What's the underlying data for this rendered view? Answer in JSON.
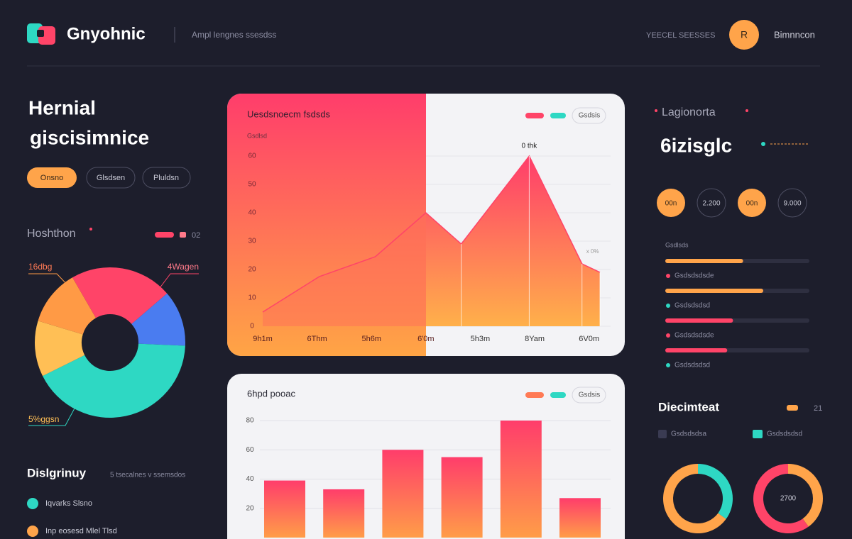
{
  "header": {
    "brand": "Gnyohnic",
    "tagline": "Ampl lengnes ssesdss",
    "status": "YEECEL SEESSES",
    "avatar": "R",
    "user": "Bimnncon"
  },
  "hero": {
    "title_lines": [
      "Hernial",
      "giscisimnice"
    ],
    "filters": [
      "Onsno",
      "Glsdsen",
      "Pluldsn"
    ]
  },
  "chart_data": [
    {
      "type": "area",
      "title": "Uesdsnoecm fsdsds",
      "subtitle": "Gsdlsd",
      "legend_button": "Gsdsis",
      "x": [
        0,
        1.04,
        2.07,
        3,
        3.65,
        4.9,
        5.87,
        6.2
      ],
      "values": [
        5,
        17.5,
        24.5,
        40,
        29,
        60,
        22,
        19
      ],
      "xlim": [
        0,
        6.2
      ],
      "xticks": [
        {
          "value": 0,
          "label": "9h1m"
        },
        {
          "value": 1,
          "label": "6Thm"
        },
        {
          "value": 2,
          "label": "5h6m"
        },
        {
          "value": 3,
          "label": "6'0m"
        },
        {
          "value": 4,
          "label": "5h3m"
        },
        {
          "value": 5,
          "label": "8Yam"
        },
        {
          "value": 6,
          "label": "6V0m"
        }
      ],
      "ylim": [
        0,
        60
      ],
      "yticks": [
        60,
        50,
        40,
        30,
        20,
        10,
        0
      ],
      "grid": true,
      "annotations": [
        "0 thk",
        "x 0%"
      ],
      "colors": [
        "#ff3d6b",
        "#ffa545"
      ]
    },
    {
      "type": "bar",
      "title": "6hpd pooac",
      "legend_button": "Gsdsis",
      "categories": [
        null,
        null,
        null,
        null,
        null,
        null
      ],
      "values": [
        39,
        33,
        60,
        55,
        80,
        27
      ],
      "ylim": [
        0,
        80
      ],
      "yticks": [
        80,
        60,
        40,
        20
      ],
      "grid": true,
      "colors": [
        "#ff3d6b",
        "#ffa545"
      ]
    },
    {
      "type": "pie",
      "title": "Hoshthon",
      "legend": "02",
      "values": [
        22,
        12,
        42,
        12,
        12
      ],
      "colors": [
        "#ff4468",
        "#4a7cf0",
        "#2ed8c3",
        "#ffbf55",
        "#ff9a45"
      ],
      "annotations": [
        "16dbg",
        "4Wagen",
        "5%ggsn"
      ]
    }
  ],
  "left_list": {
    "title": "Dislgrinuy",
    "meta": "5 tsecalnes v ssemsdos",
    "items": [
      "Iqvarks Slsno",
      "Inp eosesd Mlel Tlsd"
    ]
  },
  "right_panel": {
    "caption": "Lagionorta",
    "headline": "6izisglc",
    "chips": [
      "00n",
      "2.200",
      "00n",
      "9.000"
    ],
    "progress": {
      "heading": "Gsdlsds",
      "bars": [
        {
          "value": 54,
          "color": "#ffa44a",
          "label": "Gsdsdsdsde",
          "dot": "#ff4468"
        },
        {
          "value": 68,
          "color": "#ffa44a",
          "label": "Gsdsdsdsd",
          "dot": "#2ed8c3"
        },
        {
          "value": 47,
          "color": "#ff4468",
          "label": "Gsdsdsdsde",
          "dot": "#ff4468"
        },
        {
          "value": 43,
          "color": "#ff4468",
          "label": "Gsdsdsdsd",
          "dot": "#2ed8c3"
        }
      ]
    },
    "rings_title": "Diecimteat",
    "rings_count": "21",
    "rings_legend": [
      "Gsdsdsdsa",
      "Gsdsdsdsd"
    ],
    "rings": [
      {
        "values": [
          35,
          65
        ],
        "colors": [
          "#2ed8c3",
          "#ffa44a"
        ]
      },
      {
        "values": [
          40,
          60
        ],
        "colors": [
          "#ffa44a",
          "#ff4468"
        ],
        "center": "2700"
      }
    ]
  }
}
